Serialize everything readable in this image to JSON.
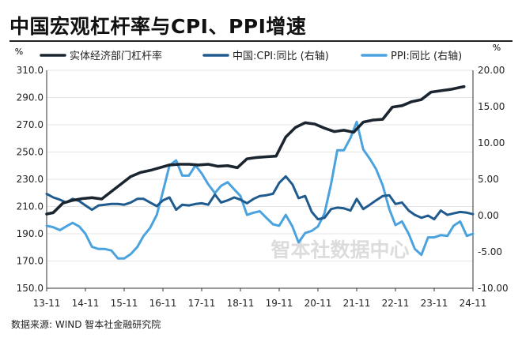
{
  "title": "中国宏观杠杆率与CPI、PPI增速",
  "footer": "数据来源: WIND 智本社金融研究院",
  "watermark": "智本社数据中心",
  "colors": {
    "leverage": "#1b2530",
    "cpi": "#1f5b8e",
    "ppi": "#4aa3df",
    "grid": "#e6e6e6",
    "axis": "#333333",
    "watermark": "#dcdcdc"
  },
  "chart_data": {
    "type": "line",
    "left_axis": {
      "unit": "%",
      "range": [
        150,
        310
      ],
      "ticks": [
        150,
        170,
        190,
        210,
        230,
        250,
        270,
        290,
        310
      ],
      "tick_labels": [
        "150.0",
        "170.0",
        "190.0",
        "210.0",
        "230.0",
        "250.0",
        "270.0",
        "290.0",
        "310.0"
      ]
    },
    "right_axis": {
      "unit": "%",
      "range": [
        -10,
        20
      ],
      "ticks": [
        -10,
        -5,
        0,
        5,
        10,
        15,
        20
      ],
      "tick_labels": [
        "-10.00",
        "-5.00",
        "0.00",
        "5.00",
        "10.00",
        "15.00",
        "20.00"
      ]
    },
    "x_axis": {
      "range": [
        2013.83,
        2024.83
      ],
      "ticks": [
        2013.83,
        2014.83,
        2015.83,
        2016.83,
        2017.83,
        2018.83,
        2019.83,
        2020.83,
        2021.83,
        2022.83,
        2023.83,
        2024.83
      ],
      "tick_labels": [
        "13-11",
        "14-11",
        "15-11",
        "16-11",
        "17-11",
        "18-11",
        "19-11",
        "20-11",
        "21-11",
        "22-11",
        "23-11",
        "24-11"
      ]
    },
    "grid": "horizontal",
    "legend_position": "top",
    "series": [
      {
        "name": "实体经济部门杠杆率",
        "axis": "left",
        "color": "#1b2530",
        "x": [
          2013.83,
          2014.0,
          2014.25,
          2014.5,
          2014.75,
          2015.0,
          2015.25,
          2015.5,
          2015.75,
          2016.0,
          2016.25,
          2016.5,
          2016.75,
          2017.0,
          2017.25,
          2017.5,
          2017.75,
          2018.0,
          2018.25,
          2018.5,
          2018.75,
          2019.0,
          2019.25,
          2019.5,
          2019.75,
          2020.0,
          2020.25,
          2020.5,
          2020.75,
          2021.0,
          2021.25,
          2021.5,
          2021.75,
          2022.0,
          2022.25,
          2022.5,
          2022.75,
          2023.0,
          2023.25,
          2023.5,
          2023.75,
          2024.0,
          2024.25,
          2024.5,
          2024.6
        ],
        "y": [
          204.5,
          205.5,
          212.5,
          214.5,
          215.8,
          216.5,
          215.5,
          221.0,
          226.5,
          232.0,
          235.0,
          236.5,
          238.5,
          240.5,
          241.0,
          241.0,
          240.5,
          241.0,
          239.5,
          240.0,
          238.5,
          245.0,
          246.0,
          246.5,
          247.0,
          261.0,
          268.0,
          271.5,
          270.5,
          267.5,
          265.0,
          266.0,
          264.5,
          272.0,
          273.5,
          274.0,
          283.0,
          284.0,
          287.0,
          288.5,
          294.0,
          295.0,
          296.0,
          297.5,
          298.0
        ]
      },
      {
        "name": "中国:CPI:同比 (右轴)",
        "axis": "right",
        "color": "#1f5b8e",
        "x": [
          2013.83,
          2014.0,
          2014.17,
          2014.33,
          2014.5,
          2014.67,
          2014.83,
          2015.0,
          2015.17,
          2015.33,
          2015.5,
          2015.67,
          2015.83,
          2016.0,
          2016.17,
          2016.33,
          2016.5,
          2016.67,
          2016.83,
          2017.0,
          2017.17,
          2017.33,
          2017.5,
          2017.67,
          2017.83,
          2018.0,
          2018.17,
          2018.33,
          2018.5,
          2018.67,
          2018.83,
          2019.0,
          2019.17,
          2019.33,
          2019.5,
          2019.67,
          2019.83,
          2020.0,
          2020.17,
          2020.33,
          2020.5,
          2020.67,
          2020.83,
          2021.0,
          2021.17,
          2021.33,
          2021.5,
          2021.67,
          2021.83,
          2022.0,
          2022.17,
          2022.33,
          2022.5,
          2022.67,
          2022.83,
          2023.0,
          2023.17,
          2023.33,
          2023.5,
          2023.67,
          2023.83,
          2024.0,
          2024.17,
          2024.33,
          2024.5,
          2024.67,
          2024.83
        ],
        "y": [
          3.0,
          2.5,
          2.2,
          1.8,
          2.3,
          2.0,
          1.4,
          0.8,
          1.4,
          1.5,
          1.6,
          1.6,
          1.5,
          1.8,
          2.3,
          2.3,
          1.8,
          1.3,
          2.1,
          2.5,
          0.8,
          1.5,
          1.4,
          1.6,
          1.7,
          1.5,
          2.9,
          1.8,
          2.1,
          2.5,
          2.2,
          1.7,
          2.3,
          2.7,
          2.8,
          3.0,
          4.5,
          5.4,
          4.3,
          2.4,
          2.7,
          0.5,
          -0.5,
          -0.3,
          0.9,
          1.1,
          1.0,
          0.7,
          2.3,
          0.9,
          1.5,
          2.1,
          2.7,
          2.8,
          1.6,
          1.8,
          0.7,
          0.1,
          -0.3,
          0.0,
          -0.5,
          0.7,
          0.1,
          0.3,
          0.5,
          0.4,
          0.2
        ]
      },
      {
        "name": "PPI:同比 (右轴)",
        "axis": "right",
        "color": "#4aa3df",
        "x": [
          2013.83,
          2014.0,
          2014.17,
          2014.33,
          2014.5,
          2014.67,
          2014.83,
          2015.0,
          2015.17,
          2015.33,
          2015.5,
          2015.67,
          2015.83,
          2016.0,
          2016.17,
          2016.33,
          2016.5,
          2016.67,
          2016.83,
          2017.0,
          2017.17,
          2017.33,
          2017.5,
          2017.67,
          2017.83,
          2018.0,
          2018.17,
          2018.33,
          2018.5,
          2018.67,
          2018.83,
          2019.0,
          2019.17,
          2019.33,
          2019.5,
          2019.67,
          2019.83,
          2020.0,
          2020.17,
          2020.33,
          2020.5,
          2020.67,
          2020.83,
          2021.0,
          2021.17,
          2021.33,
          2021.5,
          2021.67,
          2021.83,
          2022.0,
          2022.17,
          2022.33,
          2022.5,
          2022.67,
          2022.83,
          2023.0,
          2023.17,
          2023.33,
          2023.5,
          2023.67,
          2023.83,
          2024.0,
          2024.17,
          2024.33,
          2024.5,
          2024.67,
          2024.83
        ],
        "y": [
          -1.4,
          -1.6,
          -2.0,
          -1.5,
          -1.0,
          -1.5,
          -2.5,
          -4.3,
          -4.6,
          -4.6,
          -4.8,
          -5.9,
          -5.9,
          -5.3,
          -4.3,
          -2.8,
          -1.7,
          0.1,
          3.3,
          6.9,
          7.6,
          5.5,
          5.5,
          6.9,
          5.8,
          4.3,
          3.1,
          4.1,
          4.6,
          3.6,
          2.7,
          0.1,
          0.4,
          0.6,
          -0.3,
          -1.2,
          -1.4,
          0.1,
          -1.5,
          -3.7,
          -2.4,
          -2.1,
          -1.5,
          0.3,
          4.4,
          9.0,
          9.0,
          10.7,
          12.9,
          9.1,
          7.8,
          6.4,
          4.2,
          0.9,
          -1.3,
          -0.8,
          -2.5,
          -4.6,
          -5.4,
          -3.0,
          -3.0,
          -2.7,
          -2.8,
          -1.4,
          -0.8,
          -2.8,
          -2.5
        ]
      }
    ]
  }
}
